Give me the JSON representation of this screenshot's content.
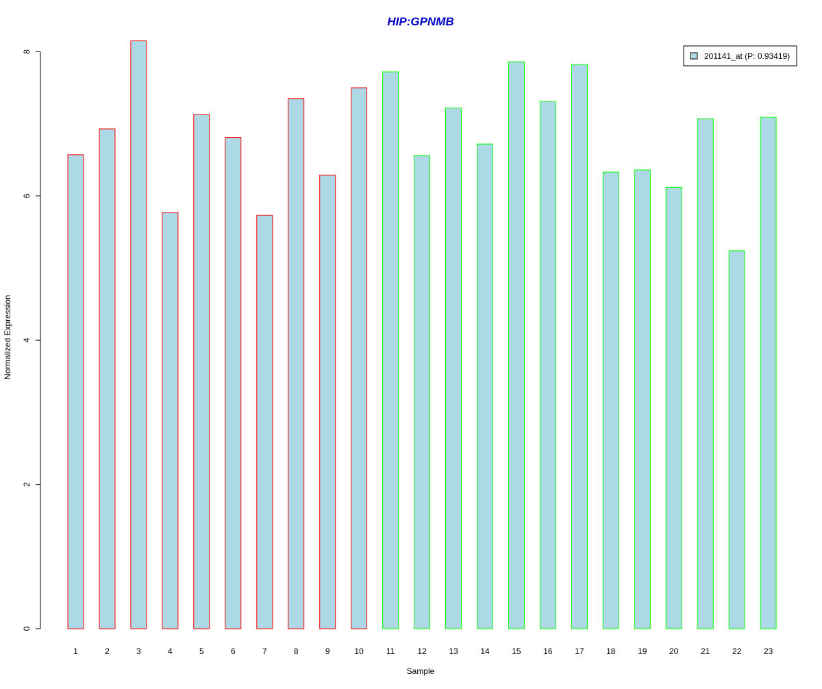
{
  "chart_data": {
    "type": "bar",
    "title": "HIP:GPNMB",
    "xlabel": "Sample",
    "ylabel": "Normalized Expression",
    "categories": [
      "1",
      "2",
      "3",
      "4",
      "5",
      "6",
      "7",
      "8",
      "9",
      "10",
      "11",
      "12",
      "13",
      "14",
      "15",
      "16",
      "17",
      "18",
      "19",
      "20",
      "21",
      "22",
      "23"
    ],
    "series": [
      {
        "name": "201141_at (P: 0.93419)",
        "values": [
          6.57,
          6.93,
          8.15,
          5.77,
          7.13,
          6.81,
          5.73,
          7.35,
          6.29,
          7.5,
          7.72,
          6.56,
          7.22,
          6.72,
          7.86,
          7.31,
          7.82,
          6.33,
          6.36,
          6.12,
          7.07,
          5.24,
          7.09
        ],
        "fill_color": "#ADD8E6"
      }
    ],
    "bar_border_colors": [
      "#FF0000",
      "#FF0000",
      "#FF0000",
      "#FF0000",
      "#FF0000",
      "#FF0000",
      "#FF0000",
      "#FF0000",
      "#FF0000",
      "#FF0000",
      "#00FF00",
      "#00FF00",
      "#00FF00",
      "#00FF00",
      "#00FF00",
      "#00FF00",
      "#00FF00",
      "#00FF00",
      "#00FF00",
      "#00FF00",
      "#00FF00",
      "#00FF00",
      "#00FF00"
    ],
    "yticks": [
      0,
      2,
      4,
      6,
      8
    ],
    "ylim": [
      0,
      8.2
    ],
    "grid": false,
    "legend_position": "top-right",
    "title_color": "#0000CC"
  }
}
